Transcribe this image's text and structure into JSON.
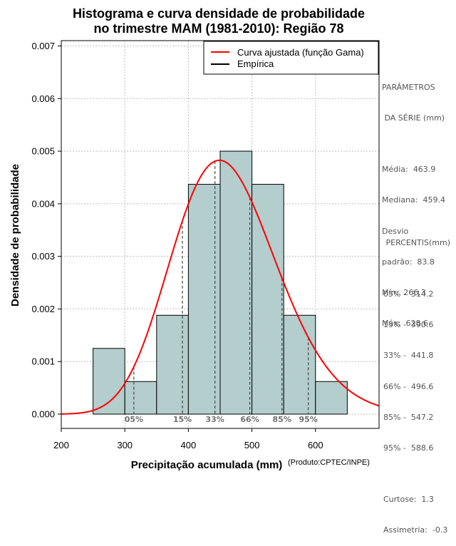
{
  "chart_data": {
    "type": "bar",
    "title_lines": [
      "Histograma e curva densidade de probabilidade",
      "no trimestre MAM (1981-2010): Região 78"
    ],
    "xlabel": "Precipitação acumulada (mm)",
    "ylabel": "Densidade de probabilidade",
    "source_note": "(Produto:CPTEC/INPE)",
    "xlim": [
      200,
      700
    ],
    "ylim": [
      0,
      0.0072
    ],
    "x_ticks": [
      200,
      300,
      400,
      500,
      600
    ],
    "y_ticks": [
      0,
      0.001,
      0.002,
      0.003,
      0.004,
      0.005,
      0.006,
      0.007
    ],
    "y_tick_labels": [
      "0.000",
      "0.001",
      "0.002",
      "0.003",
      "0.004",
      "0.005",
      "0.006",
      "0.007"
    ],
    "grid": true,
    "bins": [
      {
        "x0": 250,
        "x1": 300,
        "density": 0.00125
      },
      {
        "x0": 300,
        "x1": 350,
        "density": 0.00062
      },
      {
        "x0": 350,
        "x1": 400,
        "density": 0.00188
      },
      {
        "x0": 400,
        "x1": 450,
        "density": 0.00437
      },
      {
        "x0": 450,
        "x1": 500,
        "density": 0.005
      },
      {
        "x0": 500,
        "x1": 550,
        "density": 0.00437
      },
      {
        "x0": 550,
        "x1": 600,
        "density": 0.00188
      },
      {
        "x0": 600,
        "x1": 650,
        "density": 0.00062
      }
    ],
    "gamma_fit": {
      "mean": 463.9,
      "sd": 83.8
    },
    "percentiles": [
      {
        "label": "05%",
        "value": 314.2
      },
      {
        "label": "15%",
        "value": 390.6
      },
      {
        "label": "33%",
        "value": 441.8
      },
      {
        "label": "66%",
        "value": 496.6
      },
      {
        "label": "85%",
        "value": 547.2
      },
      {
        "label": "95%",
        "value": 588.6
      }
    ],
    "legend": [
      {
        "label": "Curva ajustada (função Gama)",
        "color": "#ff0000"
      },
      {
        "label": "Empírica",
        "color": "#000000"
      }
    ],
    "legend_position": "top-right",
    "colors": {
      "bar_fill": "#b4cdcd",
      "curve": "#ff0000",
      "grid": "#bebebe",
      "percentile_text": "#707070"
    }
  },
  "stats_panel": {
    "lines": [
      "PARÂMETROS",
      " DA SÉRIE (mm)",
      "",
      "Média:  463.9",
      "Mediana:  459.4",
      "Desvio",
      "padrão:  83.8",
      "Mín:  266.3",
      "Máx:  628.6"
    ]
  },
  "percentis_panel": {
    "lines": [
      " PERCENTIS(mm)",
      "",
      "05% -  314.2",
      "15% -  390.6",
      "33% -  441.8",
      "66% -  496.6",
      "85% -  547.2",
      "95% -  588.6",
      "",
      "Curtose:  1.3",
      "Assimetria:  -0.3"
    ]
  }
}
